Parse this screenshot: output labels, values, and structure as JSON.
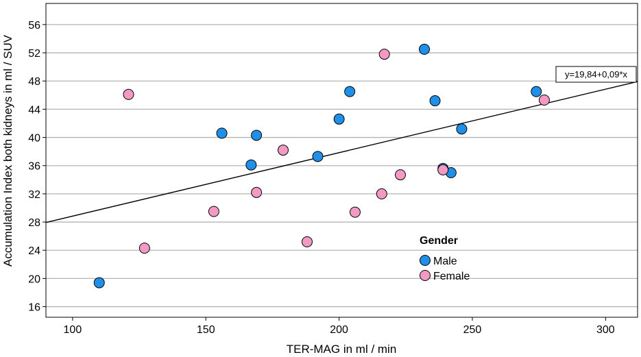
{
  "chart_data": {
    "type": "scatter",
    "xlabel": "TER-MAG in ml / min",
    "ylabel": "Accumulation Index both kidneys in ml / SUV",
    "xlim": [
      90,
      312
    ],
    "ylim": [
      14.5,
      59
    ],
    "xticks": [
      100,
      150,
      200,
      250,
      300
    ],
    "yticks": [
      16,
      20,
      24,
      28,
      32,
      36,
      40,
      44,
      48,
      52,
      56
    ],
    "grid": "horizontal",
    "legend": {
      "title": "Gender",
      "position": "center-right"
    },
    "series": [
      {
        "name": "Male",
        "color": "#1f8fe8",
        "points": [
          [
            110,
            19.4
          ],
          [
            156,
            40.6
          ],
          [
            167,
            36.1
          ],
          [
            169,
            40.3
          ],
          [
            192,
            37.3
          ],
          [
            200,
            42.6
          ],
          [
            204,
            46.5
          ],
          [
            232,
            52.5
          ],
          [
            236,
            45.2
          ],
          [
            239,
            35.6
          ],
          [
            242,
            35.0
          ],
          [
            246,
            41.2
          ],
          [
            274,
            46.5
          ]
        ]
      },
      {
        "name": "Female",
        "color": "#f29ac3",
        "points": [
          [
            121,
            46.1
          ],
          [
            127,
            24.3
          ],
          [
            153,
            29.5
          ],
          [
            169,
            32.2
          ],
          [
            179,
            38.2
          ],
          [
            188,
            25.2
          ],
          [
            206,
            29.4
          ],
          [
            216,
            32.0
          ],
          [
            217,
            51.8
          ],
          [
            223,
            34.7
          ],
          [
            239,
            35.4
          ],
          [
            277,
            45.3
          ]
        ]
      }
    ],
    "fit_line": {
      "intercept": 19.84,
      "slope": 0.09,
      "label": "y=19,84+0,09*x"
    }
  }
}
